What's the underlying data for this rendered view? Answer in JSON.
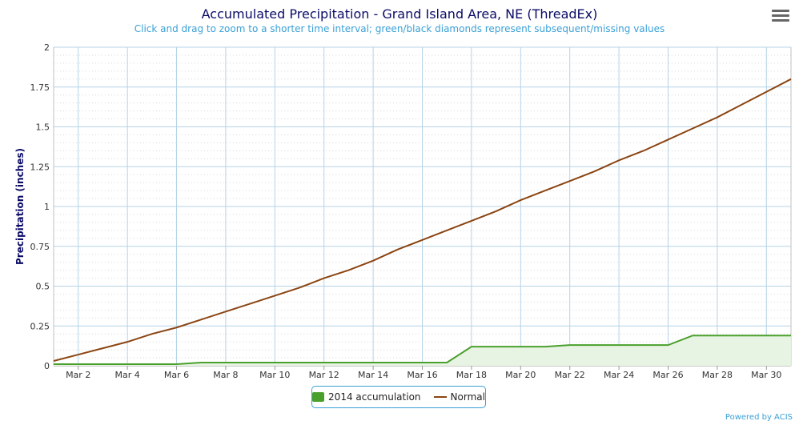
{
  "title": "Accumulated Precipitation - Grand Island Area, NE (ThreadEx)",
  "subtitle": "Click and drag to zoom to a shorter time interval; green/black diamonds represent subsequent/missing values",
  "menu_icon": "hamburger-menu-icon",
  "credits": "Powered by ACIS",
  "colors": {
    "accumulation": "#4aa02c",
    "accumulation_fill": "#e8f4e3",
    "normal": "#8b4513",
    "grid": "#b5d3e7",
    "axis_title": "#0b0b66"
  },
  "chart_data": {
    "type": "line",
    "title": "Accumulated Precipitation - Grand Island Area, NE (ThreadEx)",
    "subtitle": "Click and drag to zoom to a shorter time interval; green/black diamonds represent subsequent/missing values",
    "xlabel": "",
    "ylabel": "Precipitation (inches)",
    "ylim": [
      0,
      2
    ],
    "yticks": [
      "0",
      "0.25",
      "0.5",
      "0.75",
      "1",
      "1.25",
      "1.5",
      "1.75",
      "2"
    ],
    "xlim": [
      1,
      31
    ],
    "xticks": [
      "Mar 2",
      "Mar 4",
      "Mar 6",
      "Mar 8",
      "Mar 10",
      "Mar 12",
      "Mar 14",
      "Mar 16",
      "Mar 18",
      "Mar 20",
      "Mar 22",
      "Mar 24",
      "Mar 26",
      "Mar 28",
      "Mar 30"
    ],
    "x": [
      "Mar 1",
      "Mar 2",
      "Mar 3",
      "Mar 4",
      "Mar 5",
      "Mar 6",
      "Mar 7",
      "Mar 8",
      "Mar 9",
      "Mar 10",
      "Mar 11",
      "Mar 12",
      "Mar 13",
      "Mar 14",
      "Mar 15",
      "Mar 16",
      "Mar 17",
      "Mar 18",
      "Mar 19",
      "Mar 20",
      "Mar 21",
      "Mar 22",
      "Mar 23",
      "Mar 24",
      "Mar 25",
      "Mar 26",
      "Mar 27",
      "Mar 28",
      "Mar 29",
      "Mar 30",
      "Mar 31"
    ],
    "grid": true,
    "legend_position": "bottom-center",
    "series": [
      {
        "name": "2014 accumulation",
        "type": "area",
        "values": [
          0.01,
          0.01,
          0.01,
          0.01,
          0.01,
          0.01,
          0.02,
          0.02,
          0.02,
          0.02,
          0.02,
          0.02,
          0.02,
          0.02,
          0.02,
          0.02,
          0.02,
          0.12,
          0.12,
          0.12,
          0.12,
          0.13,
          0.13,
          0.13,
          0.13,
          0.13,
          0.19,
          0.19,
          0.19,
          0.19,
          0.19
        ]
      },
      {
        "name": "Normal",
        "type": "line",
        "values": [
          0.03,
          0.07,
          0.11,
          0.15,
          0.2,
          0.24,
          0.29,
          0.34,
          0.39,
          0.44,
          0.49,
          0.55,
          0.6,
          0.66,
          0.73,
          0.79,
          0.85,
          0.91,
          0.97,
          1.04,
          1.1,
          1.16,
          1.22,
          1.29,
          1.35,
          1.42,
          1.49,
          1.56,
          1.64,
          1.72,
          1.8
        ]
      }
    ]
  }
}
